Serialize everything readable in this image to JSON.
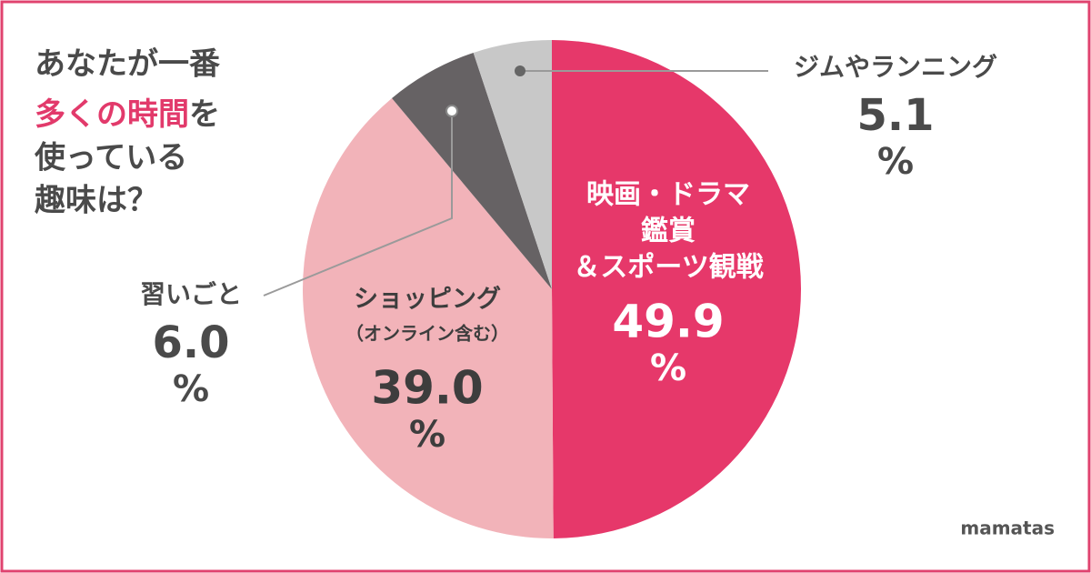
{
  "chart_data": {
    "type": "pie",
    "title_parts": [
      "あなたが一番",
      "多くの時間",
      "を",
      "使っている",
      "趣味は？"
    ],
    "categories": [
      [
        "映画・ドラマ",
        "鑑賞",
        "＆スポーツ観戦"
      ],
      [
        "ショッピング",
        "（オンライン含む）"
      ],
      [
        "習いごと"
      ],
      [
        "ジムやランニング"
      ]
    ],
    "values": [
      49.9,
      39.0,
      6.0,
      5.1
    ],
    "value_labels": [
      "49.9",
      "39.0",
      "6.0",
      "5.1"
    ],
    "unit": "%",
    "colors": [
      "#e6386a",
      "#f2b3b9",
      "#666264",
      "#c8c8c8"
    ]
  },
  "brand": "mamatas"
}
